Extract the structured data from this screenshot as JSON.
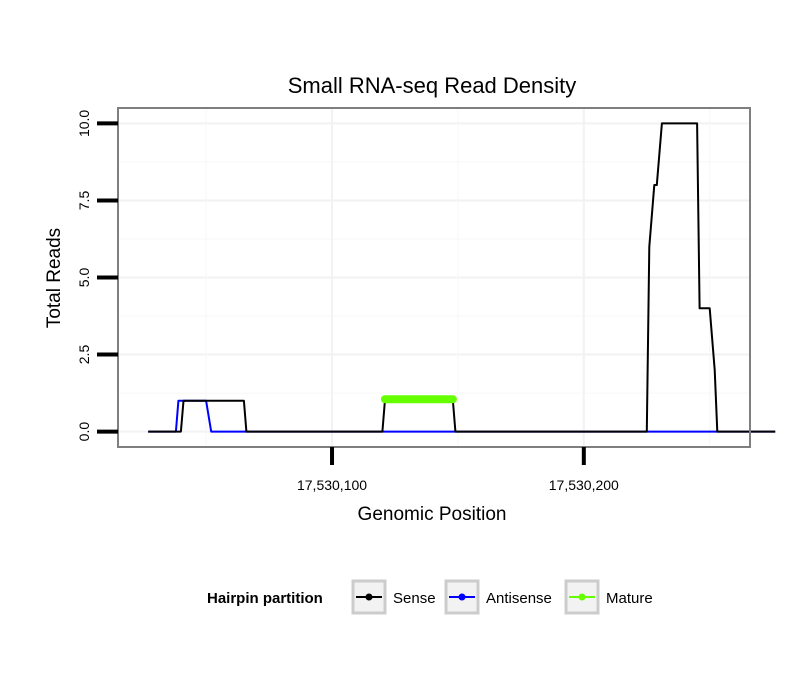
{
  "chart_data": {
    "type": "line",
    "title": "Small RNA-seq Read Density",
    "xlabel": "Genomic Position",
    "ylabel": "Total Reads",
    "xlim": [
      17530015,
      17530266
    ],
    "ylim": [
      -0.5,
      10.5
    ],
    "x_ticks": [
      17530100,
      17530200
    ],
    "x_tick_labels": [
      "17,530,100",
      "17,530,200"
    ],
    "y_ticks": [
      0,
      2.5,
      5,
      7.5,
      10
    ],
    "y_tick_labels": [
      "0.0",
      "2.5",
      "5.0",
      "7.5",
      "10.0"
    ],
    "grid": true,
    "legend": {
      "title": "Hairpin partition",
      "position": "bottom",
      "entries": [
        "Sense",
        "Antisense",
        "Mature"
      ]
    },
    "series": [
      {
        "name": "Sense",
        "color": "#000000",
        "points": [
          [
            17530027,
            0
          ],
          [
            17530040,
            0
          ],
          [
            17530041,
            1
          ],
          [
            17530050,
            1
          ],
          [
            17530052,
            1
          ],
          [
            17530065,
            1
          ],
          [
            17530066,
            0
          ],
          [
            17530120,
            0
          ],
          [
            17530121,
            1
          ],
          [
            17530148,
            1
          ],
          [
            17530149,
            0
          ],
          [
            17530225,
            0
          ],
          [
            17530226,
            6
          ],
          [
            17530227,
            7
          ],
          [
            17530228,
            8
          ],
          [
            17530229,
            8
          ],
          [
            17530231,
            10
          ],
          [
            17530245,
            10
          ],
          [
            17530246,
            4
          ],
          [
            17530250,
            4
          ],
          [
            17530252,
            2
          ],
          [
            17530253,
            0
          ],
          [
            17530276,
            0
          ]
        ]
      },
      {
        "name": "Antisense",
        "color": "#0000ff",
        "points": [
          [
            17530027,
            0
          ],
          [
            17530038,
            0
          ],
          [
            17530039,
            1
          ],
          [
            17530050,
            1
          ],
          [
            17530052,
            0
          ],
          [
            17530276,
            0
          ]
        ]
      },
      {
        "name": "Mature",
        "color": "#66ff00",
        "points": [
          [
            17530121,
            1.05
          ],
          [
            17530148,
            1.05
          ]
        ]
      }
    ]
  }
}
